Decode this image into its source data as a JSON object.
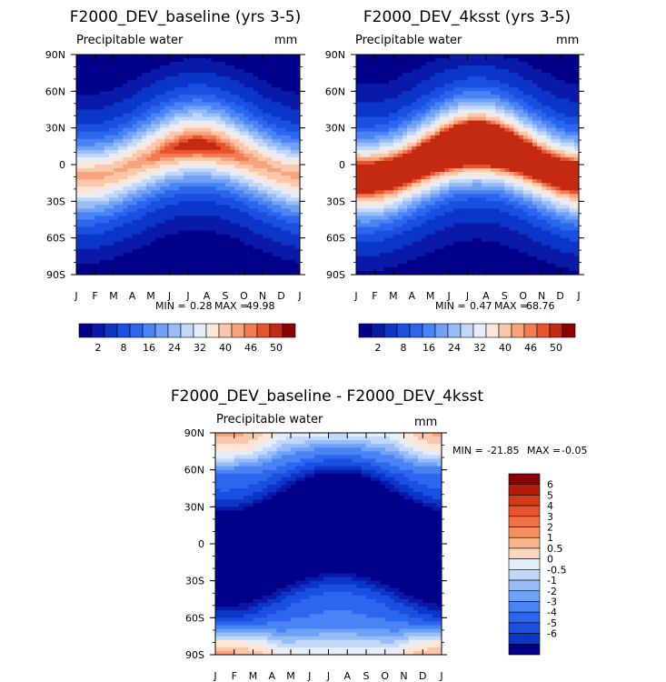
{
  "chart_data": [
    {
      "type": "heatmap",
      "title": "F2000_DEV_baseline (yrs 3-5)",
      "subtitle": "Precipitable water",
      "units": "mm",
      "x_ticks": [
        "J",
        "F",
        "M",
        "A",
        "M",
        "J",
        "J",
        "A",
        "S",
        "O",
        "N",
        "D",
        "J"
      ],
      "y_ticks": [
        "90N",
        "60N",
        "30N",
        "0",
        "30S",
        "60S",
        "90S"
      ],
      "stats": {
        "label": "MIN =",
        "min": "0.28",
        "max_label": "MAX =",
        "max": "49.98"
      },
      "model": {
        "eq_peak_mean": 46,
        "eq_peak_amp": 3,
        "pole_min": 1,
        "hemis_seasonal_amp": 0.35
      },
      "colorbar": {
        "orientation": "horizontal",
        "labels": [
          "2",
          "8",
          "16",
          "24",
          "32",
          "40",
          "46",
          "50"
        ]
      }
    },
    {
      "type": "heatmap",
      "title": "F2000_DEV_4ksst (yrs 3-5)",
      "subtitle": "Precipitable water",
      "units": "mm",
      "x_ticks": [
        "J",
        "F",
        "M",
        "A",
        "M",
        "J",
        "J",
        "A",
        "S",
        "O",
        "N",
        "D",
        "J"
      ],
      "y_ticks": [
        "90N",
        "60N",
        "30N",
        "0",
        "30S",
        "60S",
        "90S"
      ],
      "stats": {
        "label": "MIN =",
        "min": "0.47",
        "max_label": "MAX =",
        "max": "68.76"
      },
      "model": {
        "eq_peak_mean": 64,
        "eq_peak_amp": 5,
        "pole_min": 1.5,
        "hemis_seasonal_amp": 0.4
      },
      "colorbar": {
        "orientation": "horizontal",
        "labels": [
          "2",
          "8",
          "16",
          "24",
          "32",
          "40",
          "46",
          "50"
        ]
      }
    },
    {
      "type": "heatmap",
      "title": "F2000_DEV_baseline - F2000_DEV_4ksst",
      "subtitle": "Precipitable water",
      "units": "mm",
      "x_ticks": [
        "J",
        "F",
        "M",
        "A",
        "M",
        "J",
        "J",
        "A",
        "S",
        "O",
        "N",
        "D",
        "J"
      ],
      "y_ticks": [
        "90N",
        "60N",
        "30N",
        "0",
        "30S",
        "60S",
        "90S"
      ],
      "stats": {
        "label": "MIN =",
        "min": "-21.85",
        "max_label": "MAX =",
        "max": "-0.05"
      },
      "colorbar": {
        "orientation": "vertical",
        "labels": [
          "6",
          "5",
          "4",
          "3",
          "2",
          "1",
          "0.5",
          "0",
          "-0.5",
          "-1",
          "-2",
          "-3",
          "-4",
          "-5",
          "-6"
        ]
      }
    }
  ],
  "palette": {
    "levels_main": [
      2,
      4,
      8,
      12,
      16,
      20,
      24,
      28,
      32,
      36,
      40,
      44,
      46,
      48,
      50
    ],
    "colors_main": [
      "#00008b",
      "#0a1aa8",
      "#0b36c8",
      "#1a4fe0",
      "#2b66ee",
      "#4a84f4",
      "#6fa1f6",
      "#97bcf7",
      "#c2d8f8",
      "#e4eefb",
      "#fde6d8",
      "#fbc7aa",
      "#f9a37c",
      "#f47c52",
      "#e8532b",
      "#c42a12",
      "#8b0000"
    ],
    "levels_diff": [
      -6,
      -5,
      -4,
      -3,
      -2,
      -1,
      -0.5,
      0,
      0.5,
      1,
      2,
      3,
      4,
      5,
      6
    ],
    "colors_diff": [
      "#00008b",
      "#0a1aa8",
      "#0b36c8",
      "#1a4fe0",
      "#2b66ee",
      "#4a84f4",
      "#6fa1f6",
      "#97bcf7",
      "#c2d8f8",
      "#e4eefb",
      "#fde6d8",
      "#fbc7aa",
      "#f9a37c",
      "#f47c52",
      "#e8532b",
      "#c42a12",
      "#8b0000"
    ],
    "bar_colors": [
      "#8b0000",
      "#b51a08",
      "#d33a18",
      "#e8532b",
      "#f07244",
      "#f4915e",
      "#f9b48c",
      "#fdd6be",
      "#e4eefb",
      "#c2d8f8",
      "#97bcf7",
      "#6fa1f6",
      "#4a84f4",
      "#2b66ee",
      "#1a4fe0",
      "#0b36c8",
      "#00008b"
    ]
  }
}
